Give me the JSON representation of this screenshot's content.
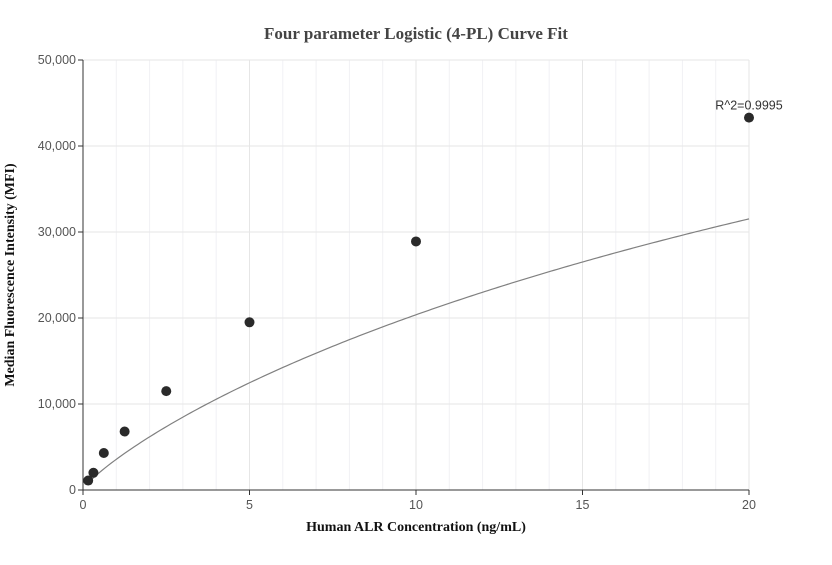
{
  "chart_data": {
    "type": "scatter",
    "title": "Four parameter Logistic (4-PL) Curve Fit",
    "xlabel": "Human ALR Concentration (ng/mL)",
    "ylabel": "Median Fluorescence Intensity (MFI)",
    "xlim": [
      0,
      20
    ],
    "ylim": [
      0,
      50000
    ],
    "x_ticks": [
      0,
      5,
      10,
      15,
      20
    ],
    "x_tick_labels": [
      "0",
      "5",
      "10",
      "15",
      "20"
    ],
    "y_ticks": [
      0,
      10000,
      20000,
      30000,
      40000,
      50000
    ],
    "y_tick_labels": [
      "0",
      "10,000",
      "20,000",
      "30,000",
      "40,000",
      "50,000"
    ],
    "x_minor_step": 1,
    "grid": true,
    "points": {
      "x": [
        0.156,
        0.313,
        0.625,
        1.25,
        2.5,
        5,
        10,
        20
      ],
      "y": [
        1100,
        2000,
        4300,
        6800,
        11500,
        19500,
        28900,
        43300
      ]
    },
    "fit": {
      "model": "4PL",
      "A": 100,
      "B": 0.85,
      "C": 50,
      "D": 100000,
      "color": "#808080"
    },
    "annotation": {
      "text": "R^2=0.9995",
      "x": 20,
      "y": 43300
    },
    "point_color": "#2a2a2a"
  }
}
